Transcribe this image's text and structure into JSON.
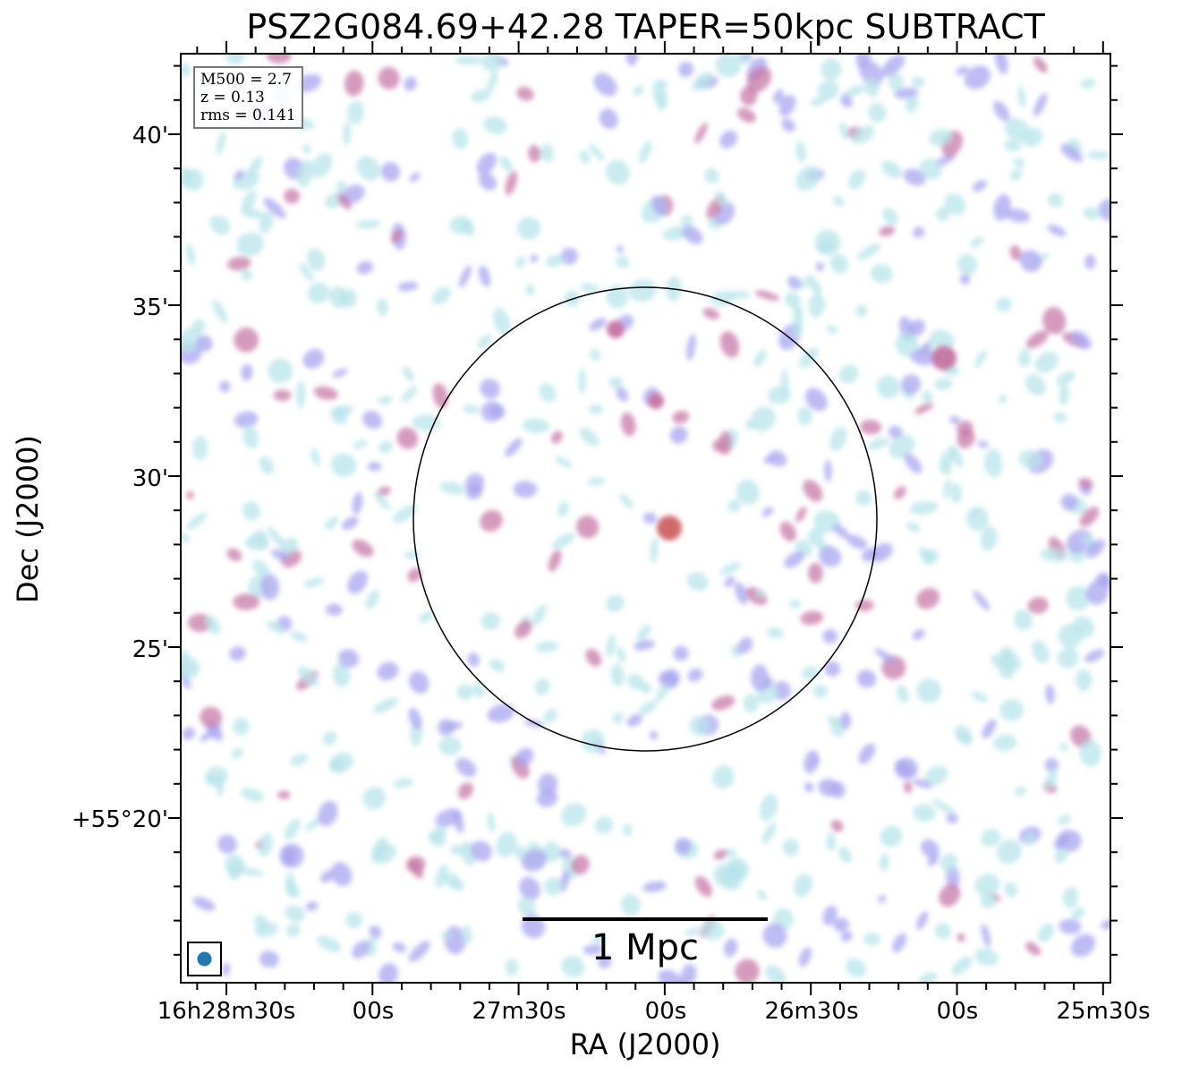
{
  "chart_data": {
    "type": "heatmap",
    "title": "PSZ2G084.69+42.28 TAPER=50kpc SUBTRACT",
    "xlabel": "RA (J2000)",
    "ylabel": "Dec (J2000)",
    "x_ticks": [
      "16h28m30s",
      "00s",
      "27m30s",
      "00s",
      "26m30s",
      "00s",
      "25m30s"
    ],
    "y_ticks": [
      "+55°20'",
      "25'",
      "30'",
      "35'",
      "40'"
    ],
    "colormap": [
      "#ffffff",
      "#b8e4ea",
      "#a9a6ef",
      "#c77aa8",
      "#d06a6a"
    ],
    "annotations": {
      "info_lines": [
        "M500 = 2.7",
        "z = 0.13",
        "rms = 0.141"
      ],
      "scale_bar_label": "1 Mpc",
      "circle": "R500 region centred on cluster",
      "beam_color": "#1f77b4"
    }
  }
}
